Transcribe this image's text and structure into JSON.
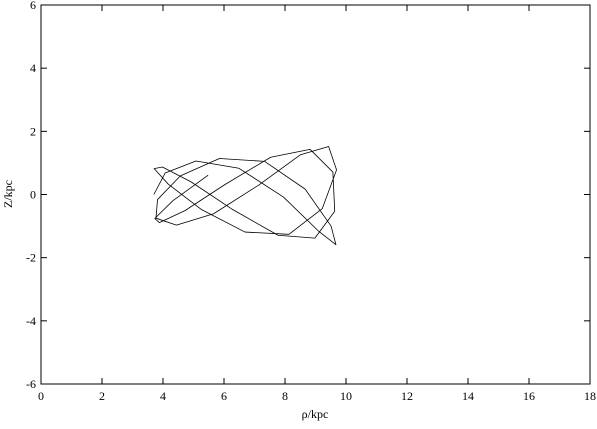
{
  "chart_data": {
    "type": "line",
    "xlabel": "ρ/kpc",
    "ylabel": "Z/kpc",
    "xlim": [
      0,
      18
    ],
    "ylim": [
      -6,
      6
    ],
    "xticks": [
      0,
      2,
      4,
      6,
      8,
      10,
      12,
      14,
      16,
      18
    ],
    "yticks": [
      -6,
      -4,
      -2,
      0,
      2,
      4,
      6
    ],
    "series": [
      {
        "color": "#000000",
        "x": [
          3.7,
          4.07,
          5.08,
          6.49,
          7.95,
          9.1,
          9.67,
          9.51,
          8.66,
          7.33,
          5.85,
          4.57,
          3.82,
          3.77,
          4.44,
          5.66,
          7.14,
          8.51,
          9.43,
          9.69,
          9.22,
          8.13,
          6.69,
          5.25,
          4.17,
          3.71,
          3.98,
          4.92,
          6.29,
          7.77,
          8.98,
          9.63,
          9.57,
          8.82,
          7.53,
          6.04,
          4.72,
          3.88,
          3.73,
          4.32,
          5.48
        ],
        "values": [
          0,
          0.68,
          1.06,
          0.83,
          -0.08,
          -1.16,
          -1.59,
          -1.0,
          0.17,
          1.05,
          1.14,
          0.59,
          -0.16,
          -0.75,
          -0.97,
          -0.61,
          0.3,
          1.26,
          1.52,
          0.78,
          -0.45,
          -1.26,
          -1.19,
          -0.47,
          0.33,
          0.82,
          0.87,
          0.4,
          -0.48,
          -1.29,
          -1.38,
          -0.53,
          0.71,
          1.43,
          1.18,
          0.32,
          -0.51,
          -0.89,
          -0.76,
          -0.2,
          0.61
        ]
      }
    ]
  }
}
